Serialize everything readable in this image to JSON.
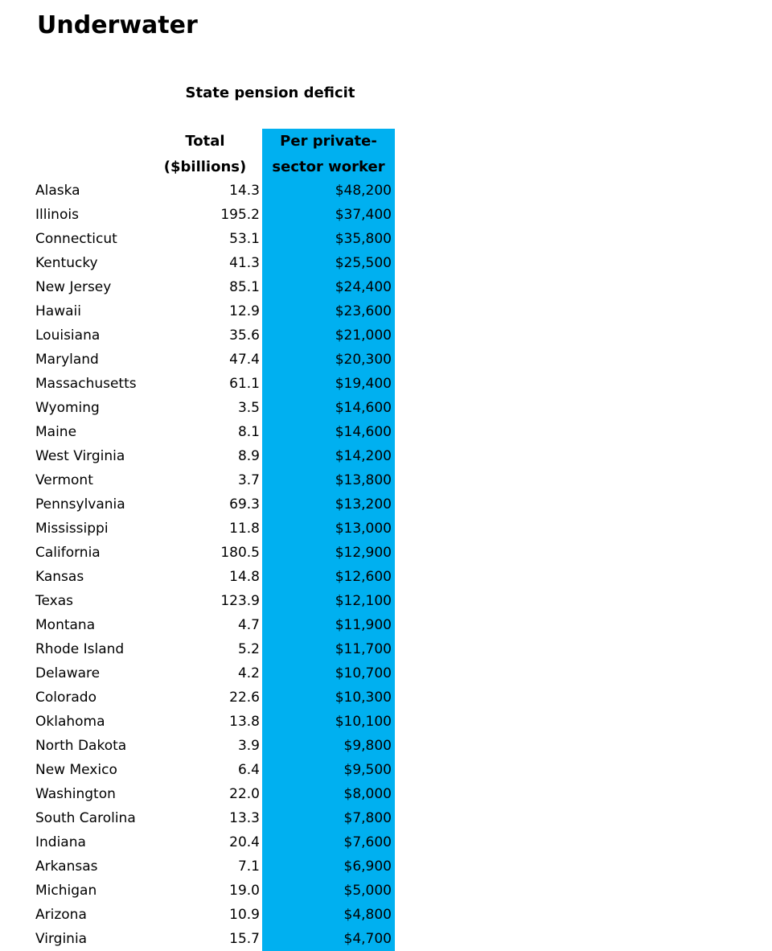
{
  "title": "Underwater",
  "subtitle": "State pension deficit",
  "headers": {
    "total_line1": "Total",
    "total_line2": "($billions)",
    "per_line1": "Per private-",
    "per_line2": "sector worker"
  },
  "colors": {
    "highlight": "#00b0f0"
  },
  "rows": [
    {
      "state": "Alaska",
      "total": "14.3",
      "per": "$48,200"
    },
    {
      "state": "Illinois",
      "total": "195.2",
      "per": "$37,400"
    },
    {
      "state": "Connecticut",
      "total": "53.1",
      "per": "$35,800"
    },
    {
      "state": "Kentucky",
      "total": "41.3",
      "per": "$25,500"
    },
    {
      "state": "New Jersey",
      "total": "85.1",
      "per": "$24,400"
    },
    {
      "state": "Hawaii",
      "total": "12.9",
      "per": "$23,600"
    },
    {
      "state": "Louisiana",
      "total": "35.6",
      "per": "$21,000"
    },
    {
      "state": "Maryland",
      "total": "47.4",
      "per": "$20,300"
    },
    {
      "state": "Massachusetts",
      "total": "61.1",
      "per": "$19,400"
    },
    {
      "state": "Wyoming",
      "total": "3.5",
      "per": "$14,600"
    },
    {
      "state": "Maine",
      "total": "8.1",
      "per": "$14,600"
    },
    {
      "state": "West Virginia",
      "total": "8.9",
      "per": "$14,200"
    },
    {
      "state": "Vermont",
      "total": "3.7",
      "per": "$13,800"
    },
    {
      "state": "Pennsylvania",
      "total": "69.3",
      "per": "$13,200"
    },
    {
      "state": "Mississippi",
      "total": "11.8",
      "per": "$13,000"
    },
    {
      "state": "California",
      "total": "180.5",
      "per": "$12,900"
    },
    {
      "state": "Kansas",
      "total": "14.8",
      "per": "$12,600"
    },
    {
      "state": "Texas",
      "total": "123.9",
      "per": "$12,100"
    },
    {
      "state": "Montana",
      "total": "4.7",
      "per": "$11,900"
    },
    {
      "state": "Rhode Island",
      "total": "5.2",
      "per": "$11,700"
    },
    {
      "state": "Delaware",
      "total": "4.2",
      "per": "$10,700"
    },
    {
      "state": "Colorado",
      "total": "22.6",
      "per": "$10,300"
    },
    {
      "state": "Oklahoma",
      "total": "13.8",
      "per": "$10,100"
    },
    {
      "state": "North Dakota",
      "total": "3.9",
      "per": "$9,800"
    },
    {
      "state": "New Mexico",
      "total": "6.4",
      "per": "$9,500"
    },
    {
      "state": "Washington",
      "total": "22.0",
      "per": "$8,000"
    },
    {
      "state": "South Carolina",
      "total": "13.3",
      "per": "$7,800"
    },
    {
      "state": "Indiana",
      "total": "20.4",
      "per": "$7,600"
    },
    {
      "state": "Arkansas",
      "total": "7.1",
      "per": "$6,900"
    },
    {
      "state": "Michigan",
      "total": "19.0",
      "per": "$5,000"
    },
    {
      "state": "Arizona",
      "total": "10.9",
      "per": "$4,800"
    },
    {
      "state": "Virginia",
      "total": "15.7",
      "per": "$4,700"
    }
  ]
}
